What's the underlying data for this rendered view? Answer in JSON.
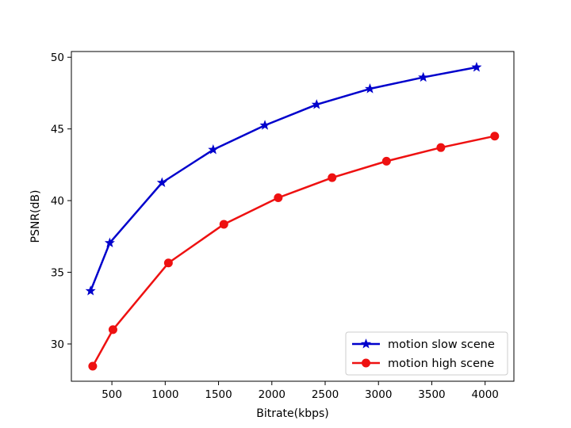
{
  "chart_data": {
    "type": "line",
    "title": "",
    "xlabel": "Bitrate(kbps)",
    "ylabel": "PSNR(dB)",
    "xlim": [
      120,
      4270
    ],
    "ylim": [
      27.4,
      50.4
    ],
    "xticks": [
      500,
      1000,
      1500,
      2000,
      2500,
      3000,
      3500,
      4000
    ],
    "yticks": [
      30,
      35,
      40,
      45,
      50
    ],
    "grid": false,
    "legend_position": "lower-right",
    "series": [
      {
        "name": "motion slow scene",
        "color": "#0000cc",
        "marker": "star",
        "x": [
          300,
          480,
          970,
          1450,
          1935,
          2420,
          2920,
          3420,
          3920
        ],
        "y": [
          33.7,
          37.05,
          41.25,
          43.55,
          45.25,
          46.7,
          47.8,
          48.6,
          49.3
        ]
      },
      {
        "name": "motion high scene",
        "color": "#ee1111",
        "marker": "circle",
        "x": [
          320,
          510,
          1030,
          1550,
          2060,
          2565,
          3075,
          3585,
          4090
        ],
        "y": [
          28.45,
          31.0,
          35.65,
          38.35,
          40.2,
          41.6,
          42.75,
          43.7,
          44.5
        ]
      }
    ]
  }
}
